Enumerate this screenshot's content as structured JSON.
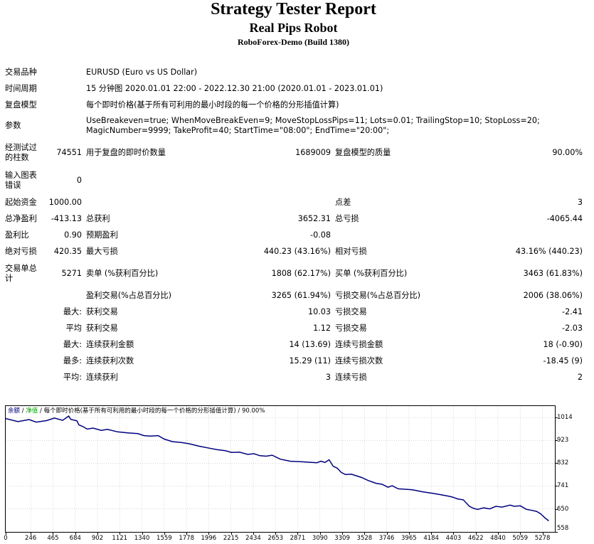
{
  "report": {
    "title": "Strategy Tester Report",
    "robot": "Real Pips Robot",
    "server": "RoboForex-Demo (Build 1380)"
  },
  "settings": {
    "symbol_label": "交易品种",
    "symbol_value": "EURUSD (Euro vs US Dollar)",
    "period_label": "时间周期",
    "period_value": "15 分钟图 2020.01.01 22:00 - 2022.12.30 21:00 (2020.01.01 - 2023.01.01)",
    "model_label": "复盘模型",
    "model_value": "每个即时价格(基于所有可利用的最小时段的每一个价格的分形插值计算)",
    "params_label": "参数",
    "params_value": "UseBreakeven=true; WhenMoveBreakEven=9; MoveStopLossPips=11; Lots=0.01; TrailingStop=10; StopLoss=20; MagicNumber=9999; TakeProfit=40; StartTime=\"08:00\"; EndTime=\"20:00\";"
  },
  "stats": {
    "bars_label": "经测试过的柱数",
    "bars_value": "74551",
    "ticks_label": "用于复盘的即时价数量",
    "ticks_value": "1689009",
    "quality_label": "复盘模型的质量",
    "quality_value": "90.00%",
    "errors_label": "输入图表错误",
    "errors_value": "0",
    "deposit_label": "起始资金",
    "deposit_value": "1000.00",
    "spread_label": "点差",
    "spread_value": "3",
    "net_label": "总净盈利",
    "net_value": "-413.13",
    "gross_profit_label": "总获利",
    "gross_profit_value": "3652.31",
    "gross_loss_label": "总亏损",
    "gross_loss_value": "-4065.44",
    "pf_label": "盈利比",
    "pf_value": "0.90",
    "payoff_label": "预期盈利",
    "payoff_value": "-0.08",
    "abs_dd_label": "绝对亏损",
    "abs_dd_value": "420.35",
    "max_dd_label": "最大亏损",
    "max_dd_value": "440.23 (43.16%)",
    "rel_dd_label": "相对亏损",
    "rel_dd_value": "43.16% (440.23)",
    "total_trades_label": "交易单总计",
    "total_trades_value": "5271",
    "short_label": "卖单 (%获利百分比)",
    "short_value": "1808 (62.17%)",
    "long_label": "买单 (%获利百分比)",
    "long_value": "3463 (61.83%)",
    "profit_trades_label": "盈利交易(%占总百分比)",
    "profit_trades_value": "3265 (61.94%)",
    "loss_trades_label": "亏损交易(%占总百分比)",
    "loss_trades_value": "2006 (38.06%)",
    "largest_label": "最大:",
    "largest_profit_label": "获利交易",
    "largest_profit_value": "10.03",
    "largest_loss_label": "亏损交易",
    "largest_loss_value": "-2.41",
    "average_label": "平均",
    "average_profit_label": "获利交易",
    "average_profit_value": "1.12",
    "average_loss_label": "亏损交易",
    "average_loss_value": "-2.03",
    "max_consec_label": "最大:",
    "max_consec_wins_label": "连续获利金额",
    "max_consec_wins_value": "14 (13.69)",
    "max_consec_losses_label": "连续亏损金额",
    "max_consec_losses_value": "18 (-0.90)",
    "maximal_label": "最多:",
    "maximal_wins_label": "连续获利次数",
    "maximal_wins_value": "15.29 (11)",
    "maximal_losses_label": "连续亏损次数",
    "maximal_losses_value": "-18.45 (9)",
    "avg_consec_label": "平均:",
    "avg_consec_wins_label": "连续获利",
    "avg_consec_wins_value": "3",
    "avg_consec_losses_label": "连续亏损",
    "avg_consec_losses_value": "2"
  },
  "chart_title": {
    "balance": "余额",
    "sep1": " / ",
    "equity": "净值",
    "sep2": " / ",
    "model": "每个即时价格(基于所有可利用的最小时段的每一个价格的分形插值计算) / 90.00%"
  },
  "colors": {
    "balance": "#00007f",
    "equity": "#00a000",
    "grid": "#c0c0c0"
  },
  "chart_data": {
    "type": "line",
    "title": "",
    "xlabel": "",
    "ylabel": "",
    "grid": true,
    "xlim": [
      0,
      5400
    ],
    "ylim": [
      558,
      1060
    ],
    "x_ticks": [
      "0",
      "246",
      "465",
      "684",
      "902",
      "1121",
      "1340",
      "1559",
      "1778",
      "1996",
      "2215",
      "2434",
      "2653",
      "2871",
      "3090",
      "3309",
      "3528",
      "3746",
      "3965",
      "4184",
      "4403",
      "4622",
      "4840",
      "5059",
      "5278"
    ],
    "y_ticks": [
      "1014",
      "923",
      "832",
      "741",
      "650",
      "558"
    ],
    "series": [
      {
        "name": "余额",
        "x": [
          0,
          120,
          230,
          300,
          400,
          480,
          560,
          620,
          640,
          700,
          720,
          760,
          800,
          860,
          940,
          1000,
          1100,
          1200,
          1300,
          1360,
          1420,
          1500,
          1560,
          1640,
          1720,
          1800,
          1900,
          2000,
          2080,
          2160,
          2220,
          2300,
          2380,
          2440,
          2500,
          2560,
          2620,
          2700,
          2800,
          2900,
          2980,
          3060,
          3100,
          3140,
          3180,
          3220,
          3260,
          3300,
          3340,
          3400,
          3500,
          3560,
          3640,
          3700,
          3760,
          3800,
          3860,
          3940,
          4000,
          4100,
          4200,
          4280,
          4360,
          4400,
          4440,
          4500,
          4560,
          4600,
          4640,
          4700,
          4760,
          4820,
          4880,
          4960,
          5000,
          5060,
          5120,
          5160,
          5220,
          5260,
          5300,
          5340
        ],
        "y": [
          1010,
          998,
          1006,
          996,
          1002,
          1012,
          1003,
          1020,
          1007,
          1001,
          985,
          978,
          968,
          972,
          963,
          967,
          957,
          953,
          950,
          942,
          940,
          942,
          928,
          918,
          915,
          910,
          900,
          892,
          886,
          882,
          875,
          876,
          867,
          870,
          862,
          860,
          864,
          848,
          840,
          838,
          836,
          834,
          840,
          835,
          846,
          820,
          812,
          795,
          787,
          788,
          775,
          764,
          752,
          748,
          736,
          742,
          730,
          728,
          726,
          718,
          712,
          706,
          700,
          696,
          690,
          686,
          660,
          652,
          648,
          654,
          650,
          660,
          657,
          665,
          660,
          662,
          648,
          645,
          640,
          630,
          615,
          602
        ]
      }
    ]
  }
}
